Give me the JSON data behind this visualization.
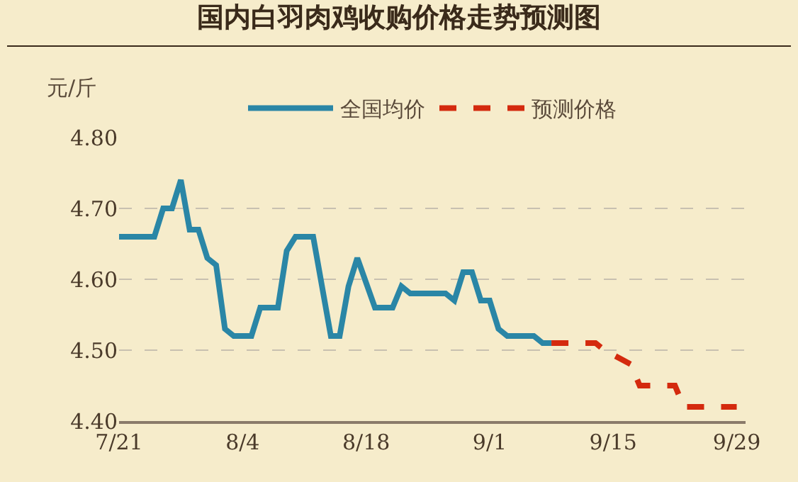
{
  "chart_data": {
    "type": "line",
    "title": "国内白羽肉鸡收购价格走势预测图",
    "ylabel": "元/斤",
    "series": [
      {
        "name": "全国均价",
        "color": "#2a86a6",
        "line_style": "solid",
        "x": [
          "--07-21",
          "--07-25",
          "--07-26",
          "--07-27",
          "--07-28",
          "--07-29",
          "--07-30",
          "--07-31",
          "--08-01",
          "--08-02",
          "--08-03",
          "--08-05",
          "--08-06",
          "--08-08",
          "--08-09",
          "--08-10",
          "--08-12",
          "--08-14",
          "--08-15",
          "--08-16",
          "--08-17",
          "--08-19",
          "--08-21",
          "--08-22",
          "--08-23",
          "--08-26",
          "--08-27",
          "--08-28",
          "--08-29",
          "--08-30",
          "--08-31",
          "--09-01",
          "--09-02",
          "--09-03",
          "--09-06",
          "--09-07",
          "--09-08"
        ],
        "values": [
          4.66,
          4.66,
          4.7,
          4.7,
          4.74,
          4.67,
          4.67,
          4.63,
          4.62,
          4.53,
          4.52,
          4.52,
          4.56,
          4.56,
          4.64,
          4.66,
          4.66,
          4.52,
          4.52,
          4.59,
          4.63,
          4.56,
          4.56,
          4.59,
          4.58,
          4.58,
          4.58,
          4.57,
          4.61,
          4.61,
          4.57,
          4.57,
          4.53,
          4.52,
          4.52,
          4.51,
          4.51
        ]
      },
      {
        "name": "预测价格",
        "color": "#d42a0e",
        "line_style": "dashed",
        "x": [
          "--09-08",
          "--09-13",
          "--09-14",
          "--09-17",
          "--09-18",
          "--09-22",
          "--09-23",
          "--09-29"
        ],
        "values": [
          4.51,
          4.51,
          4.5,
          4.48,
          4.45,
          4.45,
          4.42,
          4.42
        ]
      }
    ],
    "xlim": [
      "--07-21",
      "--09-30"
    ],
    "xticks": [
      {
        "value": "--07-21",
        "label": "7/21"
      },
      {
        "value": "--08-04",
        "label": "8/4"
      },
      {
        "value": "--08-18",
        "label": "8/18"
      },
      {
        "value": "--09-01",
        "label": "9/1"
      },
      {
        "value": "--09-15",
        "label": "9/15"
      },
      {
        "value": "--09-29",
        "label": "9/29"
      }
    ],
    "ylim": [
      4.4,
      4.8
    ],
    "yticks": [
      {
        "value": 4.4,
        "label": "4.40"
      },
      {
        "value": 4.5,
        "label": "4.50"
      },
      {
        "value": 4.6,
        "label": "4.60"
      },
      {
        "value": 4.7,
        "label": "4.70"
      },
      {
        "value": 4.8,
        "label": "4.80"
      }
    ],
    "grid": "y",
    "legend": "top",
    "marker": "none"
  }
}
